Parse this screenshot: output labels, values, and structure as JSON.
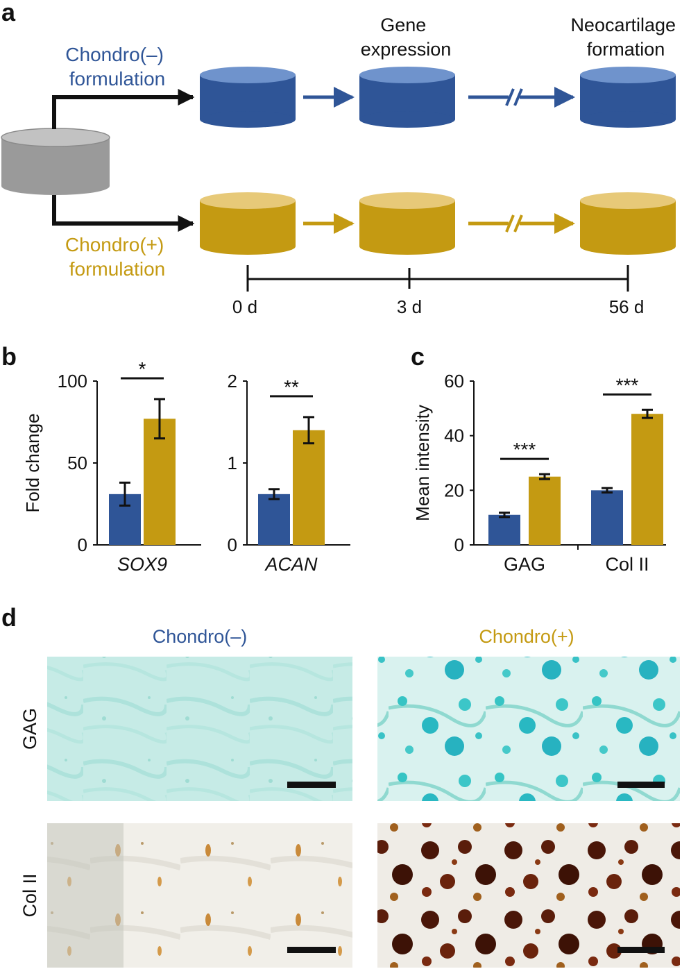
{
  "colors": {
    "minus": "#2f5597",
    "plus": "#c49a12",
    "gray": "#9a9a9a",
    "axis": "#111111"
  },
  "panel_a": {
    "label": "a",
    "minus_formulation": [
      "Chondro(–)",
      "formulation"
    ],
    "plus_formulation": [
      "Chondro(+)",
      "formulation"
    ],
    "stage_gene": [
      "Gene",
      "expression"
    ],
    "stage_neo": [
      "Neocartilage",
      "formation"
    ],
    "timeline": [
      "0 d",
      "3 d",
      "56 d"
    ]
  },
  "panel_b": {
    "label": "b"
  },
  "panel_c": {
    "label": "c"
  },
  "panel_d": {
    "label": "d",
    "col_minus": "Chondro(–)",
    "col_plus": "Chondro(+)",
    "row_gag": "GAG",
    "row_col": "Col II"
  },
  "chart_data": [
    {
      "type": "bar",
      "panel": "b-left",
      "ylabel": "Fold change",
      "ylim": [
        0,
        100
      ],
      "yticks": [
        "0",
        "50",
        "100"
      ],
      "categories": [
        "SOX9"
      ],
      "series": [
        {
          "name": "Chondro(–)",
          "values": [
            31
          ],
          "errors": [
            7
          ]
        },
        {
          "name": "Chondro(+)",
          "values": [
            77
          ],
          "errors": [
            12
          ]
        }
      ],
      "significance": [
        "*"
      ]
    },
    {
      "type": "bar",
      "panel": "b-right",
      "ylabel": "",
      "ylim": [
        0,
        2
      ],
      "yticks": [
        "0",
        "1",
        "2"
      ],
      "categories": [
        "ACAN"
      ],
      "series": [
        {
          "name": "Chondro(–)",
          "values": [
            0.62
          ],
          "errors": [
            0.06
          ]
        },
        {
          "name": "Chondro(+)",
          "values": [
            1.4
          ],
          "errors": [
            0.16
          ]
        }
      ],
      "significance": [
        "**"
      ]
    },
    {
      "type": "bar",
      "panel": "c",
      "ylabel": "Mean intensity",
      "ylim": [
        0,
        60
      ],
      "yticks": [
        "0",
        "20",
        "40",
        "60"
      ],
      "categories": [
        "GAG",
        "Col II"
      ],
      "series": [
        {
          "name": "Chondro(–)",
          "values": [
            11,
            20
          ],
          "errors": [
            0.8,
            0.8
          ]
        },
        {
          "name": "Chondro(+)",
          "values": [
            25,
            48
          ],
          "errors": [
            0.9,
            1.5
          ]
        }
      ],
      "significance": [
        "***",
        "***"
      ]
    }
  ]
}
